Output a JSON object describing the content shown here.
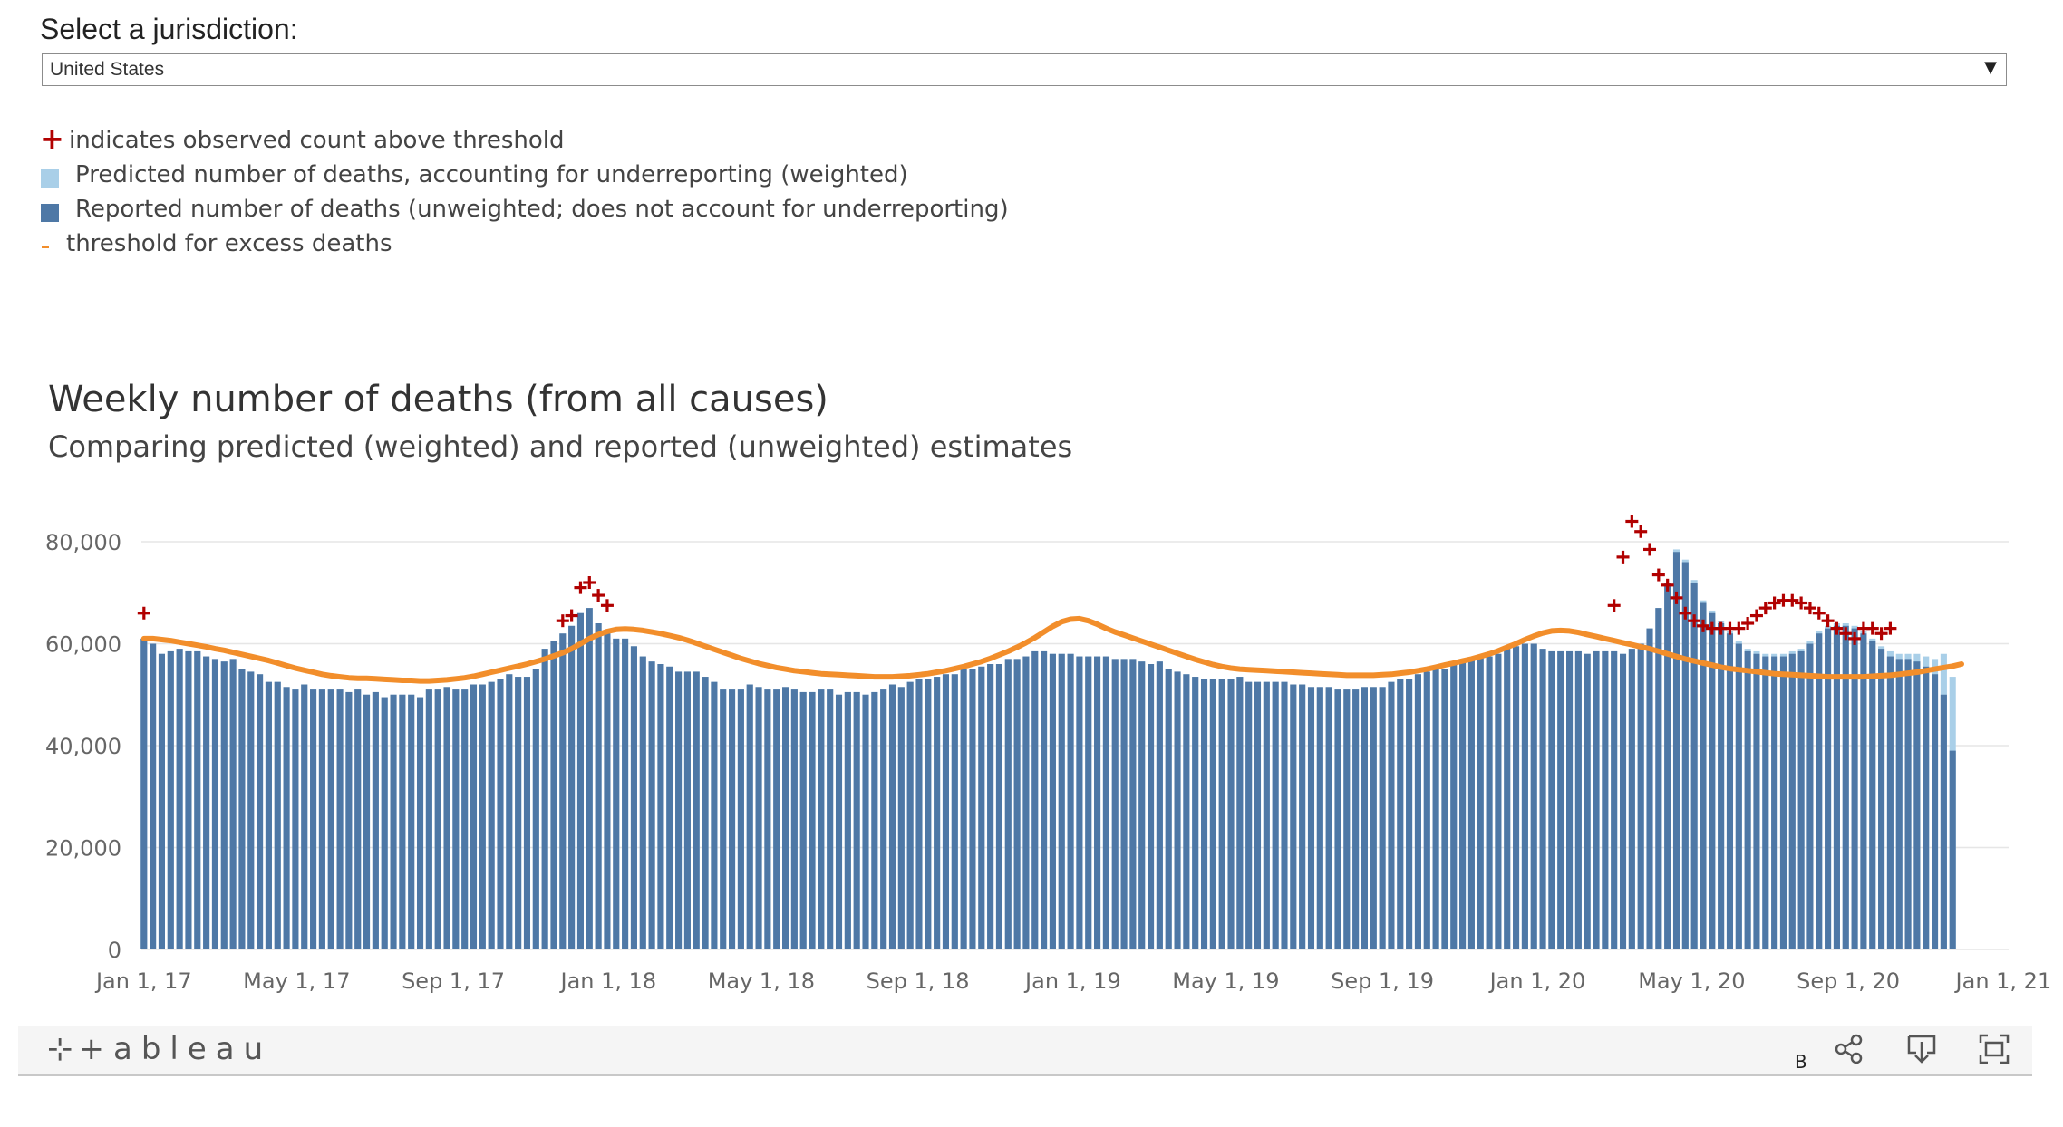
{
  "jurisdiction": {
    "label": "Select a jurisdiction:",
    "selected": "United States"
  },
  "legend": {
    "above_threshold": "indicates observed count above threshold",
    "predicted": "Predicted number of deaths, accounting for underreporting (weighted)",
    "reported": "Reported number of deaths (unweighted; does not account for underreporting)",
    "threshold": "threshold for excess deaths"
  },
  "colors": {
    "reported": "#4e78a6",
    "predicted": "#a9cfe8",
    "threshold": "#f28e2b",
    "above_marker": "#b10000",
    "grid": "#e6e6e6",
    "axis_text": "#666666"
  },
  "toolbar": {
    "brand": "+ableau",
    "badge": "B"
  },
  "chart_data": {
    "type": "bar",
    "title": "Weekly number of deaths (from all causes)",
    "subtitle": "Comparing predicted (weighted) and reported (unweighted) estimates",
    "xlabel": "",
    "ylabel": "",
    "ylim": [
      0,
      80000
    ],
    "yticks": [
      0,
      20000,
      40000,
      60000,
      80000
    ],
    "ytick_labels": [
      "0",
      "20,000",
      "40,000",
      "60,000",
      "80,000"
    ],
    "xlim_days_since_2017_01_01": [
      -2,
      1465
    ],
    "xticks_days_since_2017_01_01": [
      0,
      120,
      243,
      365,
      485,
      608,
      730,
      850,
      973,
      1095,
      1216,
      1339,
      1461
    ],
    "xtick_labels": [
      "Jan 1, 17",
      "May 1, 17",
      "Sep 1, 17",
      "Jan 1, 18",
      "May 1, 18",
      "Sep 1, 18",
      "Jan 1, 19",
      "May 1, 19",
      "Sep 1, 19",
      "Jan 1, 20",
      "May 1, 20",
      "Sep 1, 20",
      "Jan 1, 21"
    ],
    "first_week_day_offset": 0,
    "week_step_days": 7,
    "series": [
      {
        "name": "Reported number of deaths (unweighted)",
        "values": [
          61000,
          60000,
          58000,
          58500,
          59000,
          58500,
          58500,
          57500,
          57000,
          56500,
          57000,
          55000,
          54500,
          54000,
          52500,
          52500,
          51500,
          51000,
          52000,
          51000,
          51000,
          51000,
          51000,
          50500,
          51000,
          50000,
          50500,
          49500,
          50000,
          50000,
          50000,
          49500,
          51000,
          51000,
          51500,
          51000,
          51000,
          52000,
          52000,
          52500,
          53000,
          54000,
          53500,
          53500,
          55000,
          59000,
          60500,
          62000,
          63500,
          66000,
          67000,
          64000,
          62000,
          61000,
          61000,
          59500,
          57500,
          56500,
          56000,
          55500,
          54500,
          54500,
          54500,
          53500,
          52500,
          51000,
          51000,
          51000,
          52000,
          51500,
          51000,
          51000,
          51500,
          51000,
          50500,
          50500,
          51000,
          51000,
          50000,
          50500,
          50500,
          50000,
          50500,
          51000,
          52000,
          51500,
          52500,
          53000,
          53000,
          53500,
          54000,
          54000,
          55000,
          55000,
          55500,
          56000,
          56000,
          57000,
          57000,
          57500,
          58500,
          58500,
          58000,
          58000,
          58000,
          57500,
          57500,
          57500,
          57500,
          57000,
          57000,
          57000,
          56500,
          56000,
          56500,
          55000,
          54500,
          54000,
          53500,
          53000,
          53000,
          53000,
          53000,
          53500,
          52500,
          52500,
          52500,
          52500,
          52500,
          52000,
          52000,
          51500,
          51500,
          51500,
          51000,
          51000,
          51000,
          51500,
          51500,
          51500,
          52500,
          53000,
          53000,
          54000,
          54500,
          55000,
          55000,
          56000,
          56500,
          57000,
          57500,
          57500,
          58000,
          59000,
          59500,
          60000,
          60000,
          59000,
          58500,
          58500,
          58500,
          58500,
          58000,
          58500,
          58500,
          58500,
          58000,
          59000,
          60000,
          63000,
          67000,
          72000,
          78000,
          76000,
          72000,
          68000,
          66000,
          64000,
          62000,
          60000,
          58500,
          58000,
          57500,
          57500,
          57500,
          58000,
          58500,
          60000,
          62000,
          63000,
          63500,
          63500,
          63000,
          62000,
          60500,
          59000,
          57500,
          57000,
          57000,
          56500,
          55500,
          54000,
          50000,
          39000
        ],
        "color": "#4e78a6"
      },
      {
        "name": "Predicted number of deaths (weighted)",
        "values": [
          61000,
          60000,
          58000,
          58500,
          59000,
          58500,
          58500,
          57500,
          57000,
          56500,
          57000,
          55000,
          54500,
          54000,
          52500,
          52500,
          51500,
          51000,
          52000,
          51000,
          51000,
          51000,
          51000,
          50500,
          51000,
          50000,
          50500,
          49500,
          50000,
          50000,
          50000,
          49500,
          51000,
          51000,
          51500,
          51000,
          51000,
          52000,
          52000,
          52500,
          53000,
          54000,
          53500,
          53500,
          55000,
          59000,
          60500,
          62000,
          63500,
          66000,
          67000,
          64000,
          62000,
          61000,
          61000,
          59500,
          57500,
          56500,
          56000,
          55500,
          54500,
          54500,
          54500,
          53500,
          52500,
          51000,
          51000,
          51000,
          52000,
          51500,
          51000,
          51000,
          51500,
          51000,
          50500,
          50500,
          51000,
          51000,
          50000,
          50500,
          50500,
          50000,
          50500,
          51000,
          52000,
          51500,
          52500,
          53000,
          53000,
          53500,
          54000,
          54000,
          55000,
          55000,
          55500,
          56000,
          56000,
          57000,
          57000,
          57500,
          58500,
          58500,
          58000,
          58000,
          58000,
          57500,
          57500,
          57500,
          57500,
          57000,
          57000,
          57000,
          56500,
          56000,
          56500,
          55000,
          54500,
          54000,
          53500,
          53000,
          53000,
          53000,
          53000,
          53500,
          52500,
          52500,
          52500,
          52500,
          52500,
          52000,
          52000,
          51500,
          51500,
          51500,
          51000,
          51000,
          51000,
          51500,
          51500,
          51500,
          52500,
          53000,
          53000,
          54000,
          54500,
          55000,
          55000,
          56000,
          56500,
          57000,
          57500,
          57500,
          58000,
          59000,
          59500,
          60000,
          60000,
          59000,
          58500,
          58500,
          58500,
          58500,
          58000,
          58500,
          58500,
          58500,
          58000,
          59000,
          60000,
          63000,
          67000,
          72000,
          78500,
          76500,
          72500,
          68500,
          66500,
          64500,
          62500,
          60500,
          59000,
          58500,
          58000,
          58000,
          58000,
          58500,
          59000,
          60500,
          62500,
          63500,
          64000,
          64000,
          63500,
          62500,
          61000,
          59500,
          58500,
          58000,
          58000,
          58000,
          57500,
          57000,
          58000,
          53500
        ],
        "color": "#a9cfe8"
      },
      {
        "name": "threshold for excess deaths",
        "type": "line",
        "values": [
          61000,
          61000,
          60800,
          60600,
          60300,
          60000,
          59700,
          59400,
          59000,
          58700,
          58300,
          57900,
          57500,
          57100,
          56700,
          56200,
          55700,
          55200,
          54800,
          54400,
          54000,
          53700,
          53500,
          53300,
          53200,
          53200,
          53100,
          53000,
          52900,
          52800,
          52800,
          52700,
          52700,
          52800,
          52900,
          53100,
          53300,
          53600,
          54000,
          54400,
          54800,
          55200,
          55600,
          56000,
          56500,
          57000,
          57600,
          58200,
          59000,
          60000,
          61000,
          61800,
          62400,
          62800,
          62900,
          62800,
          62600,
          62300,
          62000,
          61600,
          61200,
          60700,
          60100,
          59500,
          58900,
          58300,
          57700,
          57100,
          56600,
          56100,
          55700,
          55300,
          55000,
          54700,
          54500,
          54300,
          54100,
          54000,
          53900,
          53800,
          53700,
          53600,
          53500,
          53500,
          53500,
          53600,
          53700,
          53900,
          54100,
          54400,
          54700,
          55100,
          55500,
          56000,
          56500,
          57100,
          57800,
          58500,
          59300,
          60200,
          61200,
          62300,
          63400,
          64300,
          64800,
          64900,
          64500,
          63800,
          63000,
          62300,
          61700,
          61100,
          60500,
          59900,
          59300,
          58700,
          58100,
          57500,
          56900,
          56400,
          55900,
          55500,
          55200,
          55000,
          54900,
          54800,
          54700,
          54600,
          54500,
          54400,
          54300,
          54200,
          54100,
          54000,
          53900,
          53800,
          53800,
          53800,
          53800,
          53900,
          54000,
          54200,
          54400,
          54700,
          55000,
          55400,
          55800,
          56200,
          56600,
          57000,
          57500,
          58000,
          58600,
          59300,
          60000,
          60800,
          61500,
          62100,
          62500,
          62600,
          62500,
          62200,
          61800,
          61400,
          61000,
          60600,
          60200,
          59800,
          59400,
          59000,
          58500,
          58000,
          57500,
          57000,
          56600,
          56200,
          55800,
          55400,
          55100,
          54900,
          54700,
          54500,
          54300,
          54100,
          54000,
          53900,
          53800,
          53700,
          53600,
          53500,
          53500,
          53500,
          53500,
          53500,
          53600,
          53700,
          53800,
          54000,
          54200,
          54400,
          54700,
          55000,
          55300,
          55600,
          56000
        ]
      },
      {
        "name": "observed count above threshold",
        "type": "marker",
        "points": [
          [
            0,
            66000
          ],
          [
            47,
            64500
          ],
          [
            48,
            65500
          ],
          [
            49,
            71000
          ],
          [
            50,
            72000
          ],
          [
            51,
            69500
          ],
          [
            52,
            67500
          ],
          [
            165,
            67500
          ],
          [
            166,
            77000
          ],
          [
            167,
            84000
          ],
          [
            168,
            82000
          ],
          [
            169,
            78500
          ],
          [
            170,
            73500
          ],
          [
            171,
            71500
          ],
          [
            172,
            69000
          ],
          [
            173,
            66000
          ],
          [
            174,
            64500
          ],
          [
            175,
            63500
          ],
          [
            176,
            63000
          ],
          [
            177,
            63000
          ],
          [
            178,
            63000
          ],
          [
            179,
            63000
          ],
          [
            180,
            64000
          ],
          [
            181,
            65500
          ],
          [
            182,
            67000
          ],
          [
            183,
            68000
          ],
          [
            184,
            68500
          ],
          [
            185,
            68500
          ],
          [
            186,
            68000
          ],
          [
            187,
            67000
          ],
          [
            188,
            66000
          ],
          [
            189,
            64500
          ],
          [
            190,
            63000
          ],
          [
            191,
            62000
          ],
          [
            192,
            61000
          ],
          [
            193,
            63000
          ],
          [
            194,
            63000
          ],
          [
            195,
            62000
          ],
          [
            196,
            63000
          ]
        ]
      }
    ]
  }
}
